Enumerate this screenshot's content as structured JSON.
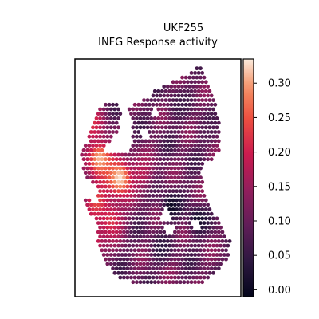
{
  "chart_data": {
    "type": "heatmap",
    "title_lines": [
      "UKF255",
      "INFG Response activity"
    ],
    "colormap": "rocket",
    "colorbar": {
      "vmin": -0.01,
      "vmax": 0.335,
      "ticks": [
        0.0,
        0.05,
        0.1,
        0.15,
        0.2,
        0.25,
        0.3
      ],
      "tick_labels": [
        "0.00",
        "0.05",
        "0.10",
        "0.15",
        "0.20",
        "0.25",
        "0.30"
      ]
    },
    "grid": false,
    "axes_visible": false,
    "spatial_hot_spots": [
      {
        "x": 0.15,
        "y": 0.42,
        "value": 0.31
      },
      {
        "x": 0.27,
        "y": 0.5,
        "value": 0.33
      },
      {
        "x": 0.1,
        "y": 0.27,
        "value": 0.22
      },
      {
        "x": 0.09,
        "y": 0.78,
        "value": 0.25
      },
      {
        "x": 0.22,
        "y": 0.68,
        "value": 0.22
      },
      {
        "x": 0.4,
        "y": 0.48,
        "value": 0.18
      },
      {
        "x": 0.13,
        "y": 0.6,
        "value": 0.24
      }
    ],
    "spatial_cold_spots": [
      {
        "x": 0.58,
        "y": 0.62,
        "value": 0.0
      },
      {
        "x": 0.74,
        "y": 0.68,
        "value": 0.01
      },
      {
        "x": 0.52,
        "y": 0.8,
        "value": 0.04
      },
      {
        "x": 0.62,
        "y": 0.2,
        "value": 0.06
      },
      {
        "x": 0.8,
        "y": 0.3,
        "value": 0.08
      }
    ],
    "background_value": 0.1
  }
}
